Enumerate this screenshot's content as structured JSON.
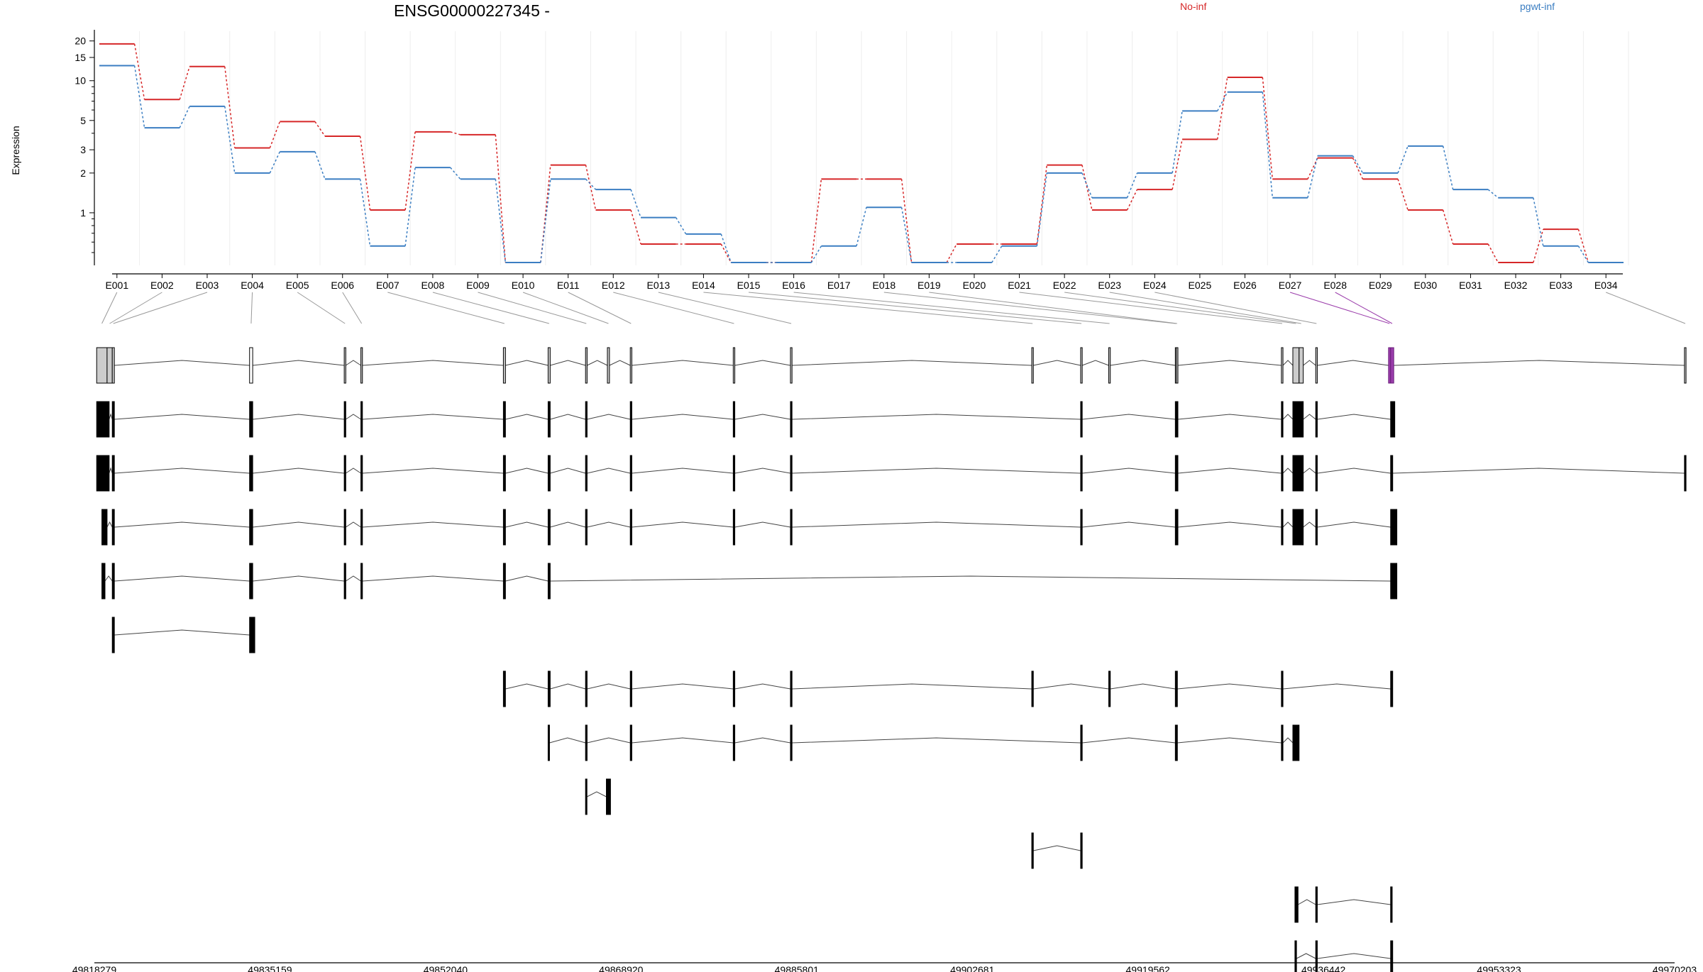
{
  "chart_data": {
    "type": "line",
    "title": "ENSG00000227345 -",
    "ylabel": "Expression",
    "y_scale": "log",
    "ylim": [
      0.4,
      22
    ],
    "y_ticks": [
      1,
      2,
      3,
      5,
      10,
      15,
      20
    ],
    "y_tick_labels": [
      "1",
      "2",
      "3",
      "5",
      "10",
      "15",
      "20"
    ],
    "grid": "vertical-light",
    "legend": [
      {
        "name": "No-inf",
        "color": "#d62728"
      },
      {
        "name": "pgwt-inf",
        "color": "#3b7ec2"
      }
    ],
    "categories": [
      "E001",
      "E002",
      "E003",
      "E004",
      "E005",
      "E006",
      "E007",
      "E008",
      "E009",
      "E010",
      "E011",
      "E012",
      "E013",
      "E014",
      "E015",
      "E016",
      "E017",
      "E018",
      "E019",
      "E020",
      "E021",
      "E022",
      "E023",
      "E024",
      "E025",
      "E026",
      "E027",
      "E028",
      "E029",
      "E030",
      "E031",
      "E032",
      "E033",
      "E034"
    ],
    "series": [
      {
        "name": "No-inf",
        "color": "#d62728",
        "values": [
          19,
          7.2,
          12.8,
          3.1,
          4.9,
          3.8,
          1.05,
          4.1,
          3.9,
          0.42,
          2.3,
          1.05,
          0.58,
          0.58,
          0.42,
          0.42,
          1.8,
          1.8,
          0.42,
          0.58,
          0.58,
          2.3,
          1.05,
          1.5,
          3.6,
          10.6,
          1.8,
          2.6,
          1.8,
          1.05,
          0.58,
          0.42,
          0.75,
          0.42
        ]
      },
      {
        "name": "pgwt-inf",
        "color": "#3b7ec2",
        "values": [
          13,
          4.4,
          6.4,
          2.0,
          2.9,
          1.8,
          0.56,
          2.2,
          1.8,
          0.42,
          1.8,
          1.5,
          0.92,
          0.69,
          0.42,
          0.42,
          0.56,
          1.1,
          0.42,
          0.42,
          0.56,
          2.0,
          1.3,
          2.0,
          5.9,
          8.2,
          1.3,
          2.7,
          2.0,
          3.2,
          1.5,
          1.3,
          0.56,
          0.42
        ]
      }
    ],
    "genomic_ticks": [
      "49818279",
      "49835159",
      "49852040",
      "49868920",
      "49885801",
      "49902681",
      "49919562",
      "49936442",
      "49953323",
      "49970203"
    ]
  }
}
